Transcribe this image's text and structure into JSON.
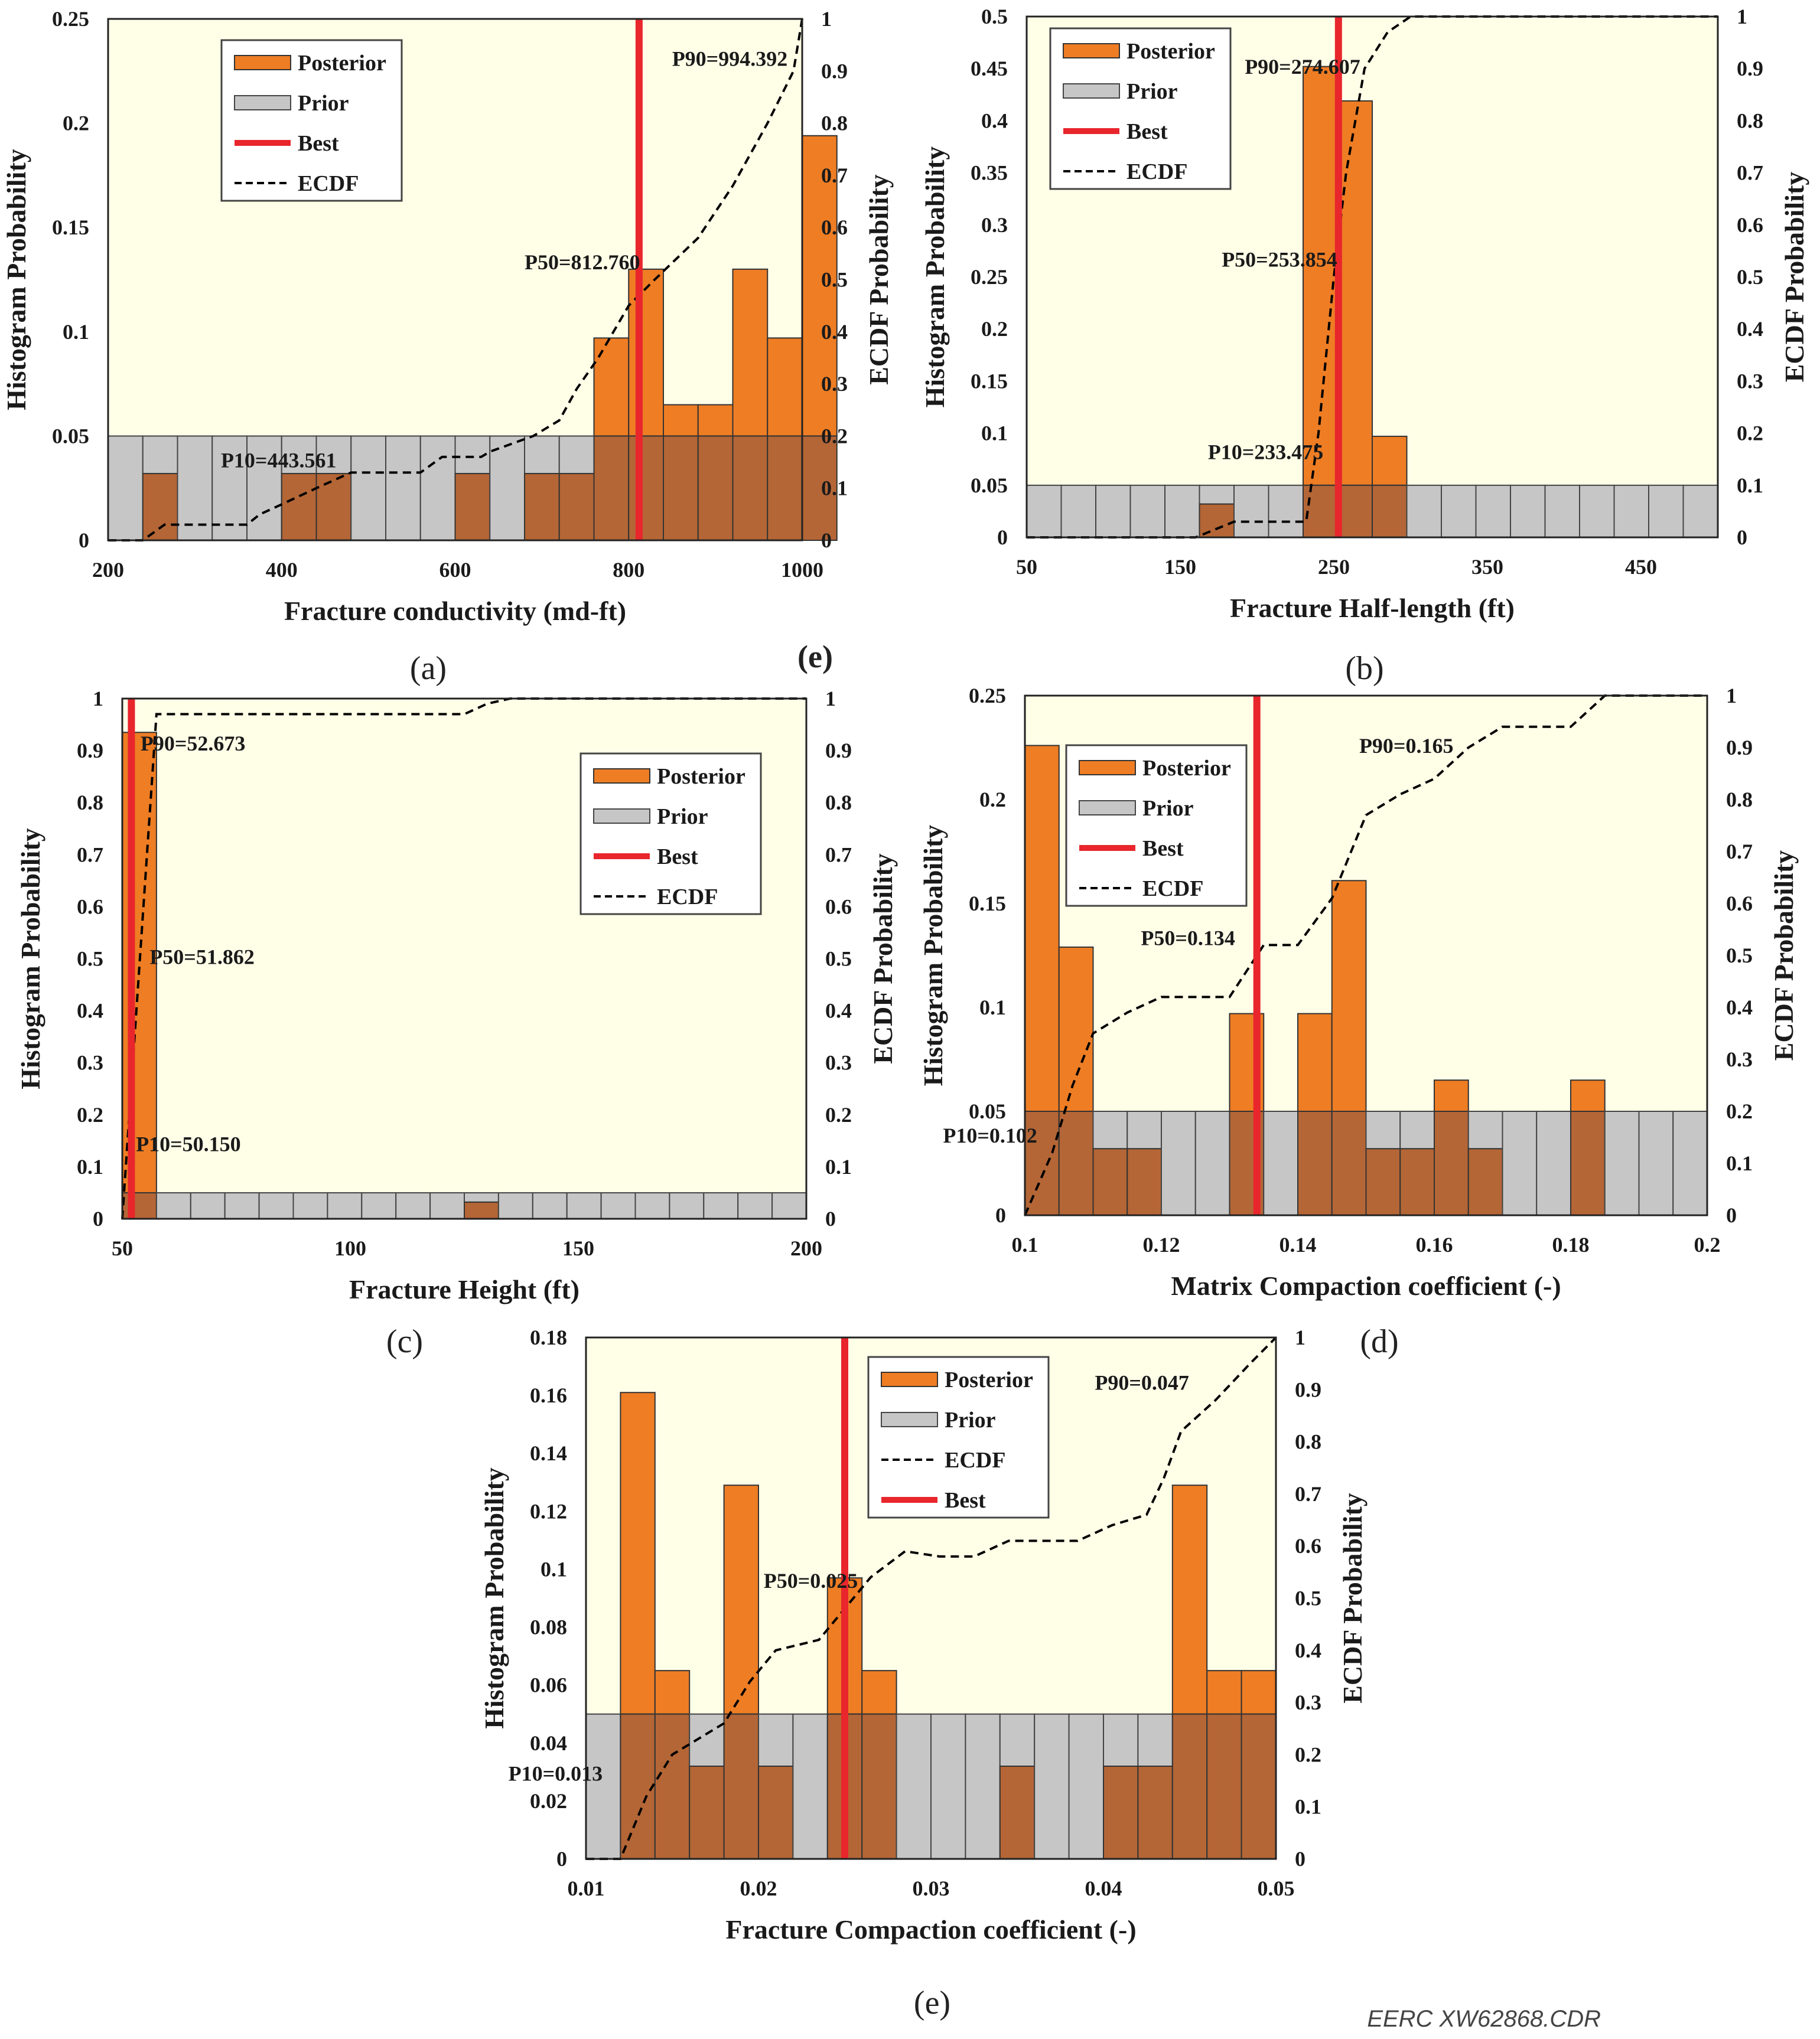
{
  "figure": {
    "footer_credit": "EERC XW62868.CDR",
    "stray_label": "(e)",
    "colors": {
      "plot_bg": "#FFFFE8",
      "posterior": "#EE7D24",
      "prior": "#C6C6C6",
      "overlap": "#B46636",
      "best": "#E8262C",
      "ecdf": "#000000"
    }
  },
  "chart_data": [
    {
      "type": "bar",
      "panel_label": "(a)",
      "xlabel": "Fracture conductivity (md-ft)",
      "ylabel": "Histogram Probability",
      "y2label": "ECDF Probability",
      "xlim": [
        200,
        1000
      ],
      "ylim": [
        0,
        0.25
      ],
      "y2lim": [
        0,
        1
      ],
      "xticks": [
        "200",
        "400",
        "600",
        "800",
        "1000"
      ],
      "xtick_values": [
        200,
        400,
        600,
        800,
        1000
      ],
      "yticks": [
        "0",
        "0.05",
        "0.1",
        "0.15",
        "0.2",
        "0.25"
      ],
      "y2ticks": [
        "0",
        "0.1",
        "0.2",
        "0.3",
        "0.4",
        "0.5",
        "0.6",
        "0.7",
        "0.8",
        "0.9",
        "1"
      ],
      "bin_start": 200,
      "bin_width": 40,
      "prior": 0.05,
      "posterior": [
        0,
        0.032,
        0,
        0,
        0,
        0.032,
        0.032,
        0,
        0,
        0,
        0.032,
        0,
        0.032,
        0.032,
        0.097,
        0.13,
        0.065,
        0.065,
        0.13,
        0.097,
        0.194
      ],
      "best": 812,
      "ecdf_x": [
        200,
        240,
        265,
        280,
        360,
        375,
        395,
        440,
        480,
        560,
        585,
        630,
        640,
        690,
        720,
        740,
        765,
        800,
        830,
        880,
        920,
        960,
        990,
        1000
      ],
      "ecdf_y": [
        0,
        0,
        0.03,
        0.03,
        0.03,
        0.05,
        0.065,
        0.1,
        0.13,
        0.13,
        0.16,
        0.16,
        0.17,
        0.2,
        0.23,
        0.29,
        0.35,
        0.45,
        0.5,
        0.58,
        0.68,
        0.8,
        0.9,
        1
      ],
      "annotations": [
        {
          "text": "P90=994.392",
          "x": 850,
          "y2": 0.91
        },
        {
          "text": "P50=812.760",
          "x": 680,
          "y2": 0.52
        },
        {
          "text": "P10=443.561",
          "x": 330,
          "y2": 0.14
        }
      ],
      "legend": {
        "items": [
          {
            "label": "Posterior",
            "kind": "posterior"
          },
          {
            "label": "Prior",
            "kind": "prior"
          },
          {
            "label": "Best",
            "kind": "best"
          },
          {
            "label": "ECDF",
            "kind": "ecdf"
          }
        ],
        "placement": "top-left"
      }
    },
    {
      "type": "bar",
      "panel_label": "(b)",
      "xlabel": "Fracture Half-length (ft)",
      "ylabel": "Histogram Probability",
      "y2label": "ECDF Probability",
      "xlim": [
        50,
        500
      ],
      "ylim": [
        0,
        0.5
      ],
      "y2lim": [
        0,
        1
      ],
      "xticks": [
        "50",
        "150",
        "250",
        "350",
        "450"
      ],
      "xtick_values": [
        50,
        150,
        250,
        350,
        450
      ],
      "yticks": [
        "0",
        "0.05",
        "0.1",
        "0.15",
        "0.2",
        "0.25",
        "0.3",
        "0.35",
        "0.4",
        "0.45",
        "0.5"
      ],
      "y2ticks": [
        "0",
        "0.1",
        "0.2",
        "0.3",
        "0.4",
        "0.5",
        "0.6",
        "0.7",
        "0.8",
        "0.9",
        "1"
      ],
      "bin_start": 50,
      "bin_width": 22.5,
      "prior": 0.05,
      "posterior": [
        0,
        0,
        0,
        0,
        0,
        0.032,
        0,
        0,
        0.452,
        0.419,
        0.097,
        0,
        0,
        0,
        0,
        0,
        0,
        0,
        0,
        0
      ],
      "best": 253,
      "ecdf_x": [
        50,
        160,
        185,
        205,
        232,
        240,
        250,
        258,
        270,
        285,
        300,
        500
      ],
      "ecdf_y": [
        0,
        0,
        0.03,
        0.03,
        0.03,
        0.2,
        0.5,
        0.7,
        0.9,
        0.97,
        1,
        1
      ],
      "annotations": [
        {
          "text": "P90=274.607",
          "x": 192,
          "y2": 0.89
        },
        {
          "text": "P50=253.854",
          "x": 177,
          "y2": 0.52
        },
        {
          "text": "P10=233.475",
          "x": 168,
          "y2": 0.15
        }
      ],
      "legend": {
        "items": [
          {
            "label": "Posterior",
            "kind": "posterior"
          },
          {
            "label": "Prior",
            "kind": "prior"
          },
          {
            "label": "Best",
            "kind": "best"
          },
          {
            "label": "ECDF",
            "kind": "ecdf"
          }
        ],
        "placement": "top-left"
      }
    },
    {
      "type": "bar",
      "panel_label": "(c)",
      "xlabel": "Fracture Height (ft)",
      "ylabel": "Histogram Probability",
      "y2label": "ECDF Probability",
      "xlim": [
        50,
        200
      ],
      "ylim": [
        0,
        1
      ],
      "y2lim": [
        0,
        1
      ],
      "xticks": [
        "50",
        "100",
        "150",
        "200"
      ],
      "xtick_values": [
        50,
        100,
        150,
        200
      ],
      "yticks": [
        "0",
        "0.1",
        "0.2",
        "0.3",
        "0.4",
        "0.5",
        "0.6",
        "0.7",
        "0.8",
        "0.9",
        "1"
      ],
      "y2ticks": [
        "0",
        "0.1",
        "0.2",
        "0.3",
        "0.4",
        "0.5",
        "0.6",
        "0.7",
        "0.8",
        "0.9",
        "1"
      ],
      "bin_start": 50,
      "bin_width": 7.5,
      "prior": 0.05,
      "posterior": [
        0.935,
        0,
        0,
        0,
        0,
        0,
        0,
        0,
        0,
        0,
        0.032,
        0,
        0,
        0,
        0,
        0,
        0,
        0,
        0,
        0
      ],
      "best": 52,
      "ecdf_x": [
        50,
        57.5,
        125,
        130,
        135,
        200
      ],
      "ecdf_y": [
        0,
        0.97,
        0.97,
        0.99,
        1,
        1
      ],
      "annotations": [
        {
          "text": "P90=52.673",
          "x": 54,
          "y2": 0.9
        },
        {
          "text": "P50=51.862",
          "x": 56,
          "y2": 0.49
        },
        {
          "text": "P10=50.150",
          "x": 53,
          "y2": 0.13
        }
      ],
      "legend": {
        "items": [
          {
            "label": "Posterior",
            "kind": "posterior"
          },
          {
            "label": "Prior",
            "kind": "prior"
          },
          {
            "label": "Best",
            "kind": "best"
          },
          {
            "label": "ECDF",
            "kind": "ecdf"
          }
        ],
        "placement": "top-right"
      }
    },
    {
      "type": "bar",
      "panel_label": "(d)",
      "xlabel": "Matrix Compaction coefficient (-)",
      "ylabel": "Histogram Probability",
      "y2label": "ECDF Probability",
      "xlim": [
        0.1,
        0.2
      ],
      "ylim": [
        0,
        0.25
      ],
      "y2lim": [
        0,
        1
      ],
      "xticks": [
        "0.1",
        "0.12",
        "0.14",
        "0.16",
        "0.18",
        "0.2"
      ],
      "xtick_values": [
        0.1,
        0.12,
        0.14,
        0.16,
        0.18,
        0.2
      ],
      "yticks": [
        "0",
        "0.05",
        "0.1",
        "0.15",
        "0.2",
        "0.25"
      ],
      "y2ticks": [
        "0",
        "0.1",
        "0.2",
        "0.3",
        "0.4",
        "0.5",
        "0.6",
        "0.7",
        "0.8",
        "0.9",
        "1"
      ],
      "bin_start": 0.1,
      "bin_width": 0.005,
      "prior": 0.05,
      "posterior": [
        0.226,
        0.129,
        0.032,
        0.032,
        0,
        0,
        0.097,
        0,
        0.097,
        0.161,
        0.032,
        0.032,
        0.065,
        0.032,
        0,
        0,
        0.065,
        0,
        0,
        0
      ],
      "best": 0.134,
      "ecdf_x": [
        0.1,
        0.104,
        0.107,
        0.11,
        0.115,
        0.12,
        0.125,
        0.13,
        0.135,
        0.14,
        0.145,
        0.15,
        0.155,
        0.16,
        0.165,
        0.17,
        0.175,
        0.18,
        0.185,
        0.2
      ],
      "ecdf_y": [
        0,
        0.12,
        0.25,
        0.35,
        0.39,
        0.42,
        0.42,
        0.42,
        0.52,
        0.52,
        0.61,
        0.77,
        0.81,
        0.84,
        0.9,
        0.94,
        0.94,
        0.94,
        1,
        1
      ],
      "annotations": [
        {
          "text": "P90=0.165",
          "x": 0.149,
          "y2": 0.89
        },
        {
          "text": "P50=0.134",
          "x": 0.117,
          "y2": 0.52
        },
        {
          "text": "P10=0.102",
          "x": 0.088,
          "y2": 0.14
        }
      ],
      "legend": {
        "items": [
          {
            "label": "Posterior",
            "kind": "posterior"
          },
          {
            "label": "Prior",
            "kind": "prior"
          },
          {
            "label": "Best",
            "kind": "best"
          },
          {
            "label": "ECDF",
            "kind": "ecdf"
          }
        ],
        "placement": "top-left"
      }
    },
    {
      "type": "bar",
      "panel_label": "(e)",
      "xlabel": "Fracture Compaction coefficient (-)",
      "ylabel": "Histogram Probability",
      "y2label": "ECDF Probability",
      "xlim": [
        0.01,
        0.05
      ],
      "ylim": [
        0,
        0.18
      ],
      "y2lim": [
        0,
        1
      ],
      "xticks": [
        "0.01",
        "0.02",
        "0.03",
        "0.04",
        "0.05"
      ],
      "xtick_values": [
        0.01,
        0.02,
        0.03,
        0.04,
        0.05
      ],
      "yticks": [
        "0",
        "0.02",
        "0.04",
        "0.06",
        "0.08",
        "0.1",
        "0.12",
        "0.14",
        "0.16",
        "0.18"
      ],
      "y2ticks": [
        "0",
        "0.1",
        "0.2",
        "0.3",
        "0.4",
        "0.5",
        "0.6",
        "0.7",
        "0.8",
        "0.9",
        "1"
      ],
      "bin_start": 0.01,
      "bin_width": 0.002,
      "prior": 0.05,
      "posterior": [
        0,
        0.161,
        0.065,
        0.032,
        0.129,
        0.032,
        0,
        0.097,
        0.065,
        0,
        0,
        0,
        0.032,
        0,
        0,
        0.032,
        0.032,
        0.129,
        0.065,
        0.065
      ],
      "best": 0.025,
      "ecdf_x": [
        0.01,
        0.012,
        0.0135,
        0.015,
        0.017,
        0.018,
        0.0195,
        0.021,
        0.0235,
        0.025,
        0.0265,
        0.0285,
        0.0305,
        0.0325,
        0.0345,
        0.0365,
        0.0385,
        0.0405,
        0.0425,
        0.0435,
        0.0445,
        0.0465,
        0.0485,
        0.05
      ],
      "ecdf_y": [
        0,
        0,
        0.12,
        0.2,
        0.24,
        0.26,
        0.34,
        0.4,
        0.42,
        0.48,
        0.54,
        0.59,
        0.58,
        0.58,
        0.61,
        0.61,
        0.61,
        0.64,
        0.66,
        0.73,
        0.82,
        0.88,
        0.95,
        1
      ],
      "annotations": [
        {
          "text": "P90=0.047",
          "x": 0.0395,
          "y2": 0.9
        },
        {
          "text": "P50=0.025",
          "x": 0.0203,
          "y2": 0.52
        },
        {
          "text": "P10=0.013",
          "x": 0.0055,
          "y2": 0.15
        }
      ],
      "legend": {
        "items": [
          {
            "label": "Posterior",
            "kind": "posterior"
          },
          {
            "label": "Prior",
            "kind": "prior"
          },
          {
            "label": "ECDF",
            "kind": "ecdf"
          },
          {
            "label": "Best",
            "kind": "best"
          }
        ],
        "placement": "top-left"
      }
    }
  ]
}
